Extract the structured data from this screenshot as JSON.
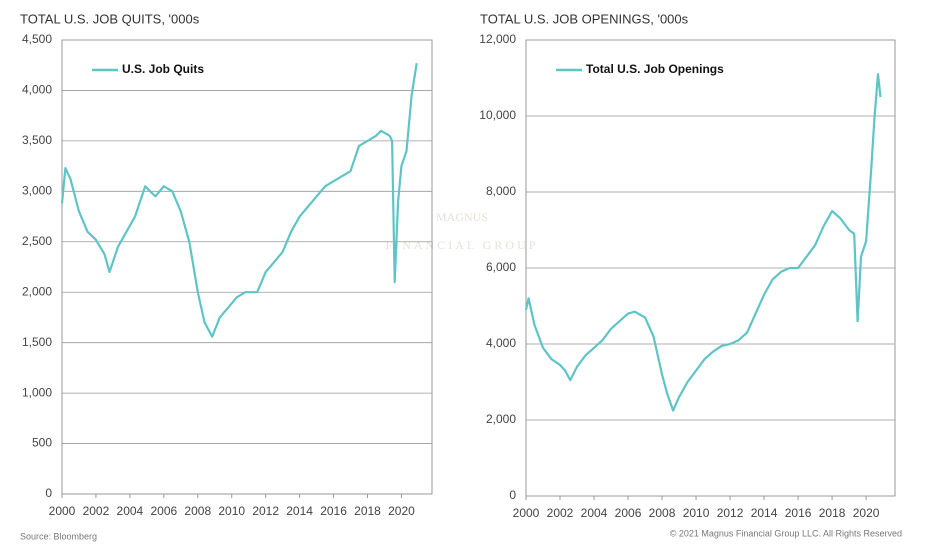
{
  "chart_data": [
    {
      "type": "line",
      "title": "TOTAL U.S. JOB QUITS, '000s",
      "x": [
        2000,
        2000.2,
        2000.5,
        2001,
        2001.5,
        2002,
        2002.5,
        2002.8,
        2003.3,
        2003.8,
        2004.3,
        2004.9,
        2005.5,
        2006,
        2006.5,
        2007,
        2007.5,
        2008,
        2008.4,
        2008.85,
        2009.3,
        2009.8,
        2010.3,
        2010.8,
        2011.5,
        2012,
        2012.5,
        2013,
        2013.5,
        2014,
        2014.5,
        2015,
        2015.5,
        2016,
        2016.5,
        2017,
        2017.5,
        2018,
        2018.5,
        2018.8,
        2019.3,
        2019.45,
        2019.6,
        2019.8,
        2020,
        2020.3,
        2020.6,
        2020.9
      ],
      "series": [
        {
          "name": "U.S. Job Quits",
          "color": "#5ec4c6",
          "values": [
            2880,
            3230,
            3120,
            2800,
            2600,
            2520,
            2380,
            2200,
            2450,
            2600,
            2750,
            3050,
            2950,
            3050,
            3000,
            2800,
            2500,
            2000,
            1700,
            1560,
            1750,
            1850,
            1950,
            2000,
            2000,
            2200,
            2300,
            2400,
            2600,
            2750,
            2850,
            2950,
            3050,
            3100,
            3150,
            3200,
            3450,
            3500,
            3550,
            3600,
            3550,
            3500,
            2100,
            2900,
            3250,
            3400,
            3950,
            4270
          ]
        }
      ],
      "xlim": [
        2000,
        2021.8
      ],
      "xticks": [
        2000,
        2002,
        2004,
        2006,
        2008,
        2010,
        2012,
        2014,
        2016,
        2018,
        2020
      ],
      "ylim": [
        0,
        4500
      ],
      "yticks": [
        0,
        500,
        {
          "value": 1000,
          "label": "1,000"
        },
        {
          "value": 1500,
          "label": "1,500"
        },
        {
          "value": 2000,
          "label": "2,000"
        },
        {
          "value": 2500,
          "label": "2,500"
        },
        {
          "value": 3000,
          "label": "3,000"
        },
        {
          "value": 3500,
          "label": "3,500"
        },
        {
          "value": 4000,
          "label": "4,000"
        },
        {
          "value": 4500,
          "label": "4,500"
        }
      ],
      "grid": true,
      "legend": "upper left"
    },
    {
      "type": "line",
      "title": "TOTAL U.S. JOB OPENINGS, '000s",
      "x": [
        2000,
        2000.15,
        2000.5,
        2001,
        2001.5,
        2002,
        2002.3,
        2002.6,
        2003,
        2003.5,
        2004,
        2004.5,
        2005,
        2005.5,
        2006,
        2006.4,
        2007,
        2007.5,
        2008,
        2008.3,
        2008.65,
        2009,
        2009.5,
        2010,
        2010.5,
        2011,
        2011.5,
        2012,
        2012.5,
        2013,
        2013.5,
        2014,
        2014.5,
        2015,
        2015.5,
        2016,
        2016.5,
        2017,
        2017.5,
        2018,
        2018.5,
        2019,
        2019.3,
        2019.5,
        2019.7,
        2020,
        2020.3,
        2020.5,
        2020.7,
        2020.85
      ],
      "series": [
        {
          "name": "Total U.S. Job Openings",
          "color": "#5ec4c6",
          "values": [
            4900,
            5200,
            4500,
            3900,
            3600,
            3450,
            3300,
            3050,
            3400,
            3700,
            3900,
            4100,
            4400,
            4600,
            4800,
            4850,
            4700,
            4200,
            3200,
            2700,
            2250,
            2600,
            3000,
            3300,
            3600,
            3800,
            3950,
            4000,
            4100,
            4300,
            4800,
            5300,
            5700,
            5900,
            6000,
            6000,
            6300,
            6600,
            7100,
            7500,
            7300,
            7000,
            6900,
            4600,
            6300,
            6700,
            8600,
            10000,
            11100,
            10500
          ]
        }
      ],
      "xlim": [
        2000,
        2021.7
      ],
      "xticks": [
        2000,
        2002,
        2004,
        2006,
        2008,
        2010,
        2012,
        2014,
        2016,
        2018,
        2020
      ],
      "ylim": [
        0,
        12000
      ],
      "yticks": [
        0,
        {
          "value": 2000,
          "label": "2,000"
        },
        {
          "value": 4000,
          "label": "4,000"
        },
        {
          "value": 6000,
          "label": "6,000"
        },
        {
          "value": 8000,
          "label": "8,000"
        },
        {
          "value": 10000,
          "label": "10,000"
        },
        {
          "value": 12000,
          "label": "12,000"
        }
      ],
      "grid": true,
      "legend": "upper left"
    }
  ],
  "watermark": {
    "name": "MAGNUS",
    "tagline": "FINANCIAL GROUP"
  },
  "source": "Source: Bloomberg",
  "copyright": "© 2021 Magnus Financial Group LLC. All Rights Reserved"
}
